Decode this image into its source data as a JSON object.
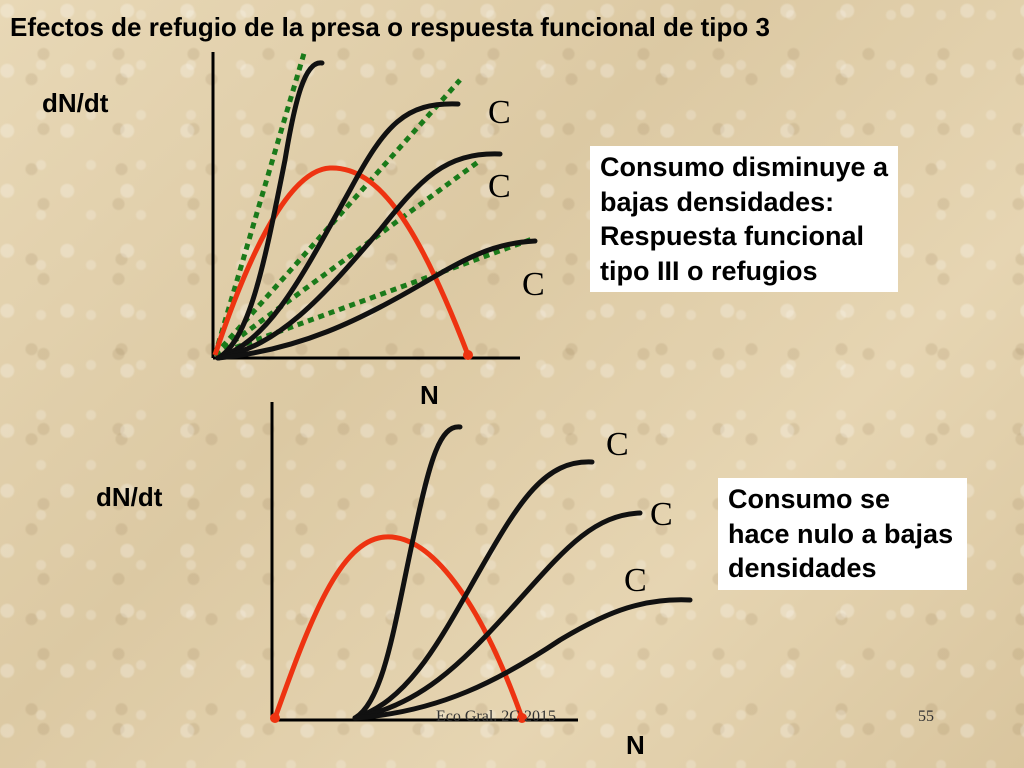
{
  "title": "Efectos de refugio de la presa o respuesta funcional de tipo 3",
  "top_panel": {
    "ylabel": "dN/dt",
    "xlabel": "N",
    "curve_labels": [
      "C",
      "C",
      "C"
    ],
    "note_lines": [
      "Consumo disminuye a",
      "bajas densidades:",
      "Respuesta funcional",
      "tipo III o refugios"
    ]
  },
  "bottom_panel": {
    "ylabel": "dN/dt",
    "xlabel": "N",
    "curve_labels": [
      "C",
      "C",
      "C"
    ],
    "note_lines": [
      "Consumo se",
      "hace nulo a bajas",
      "densidades"
    ]
  },
  "footer": {
    "source": "Eco Gral. 2C 2015",
    "page_number": "55"
  },
  "colors": {
    "axis": "#000000",
    "consumption_curves": "#111111",
    "production_curve": "#ee3311",
    "type2_dotted_lines": "#1a7a1a"
  }
}
